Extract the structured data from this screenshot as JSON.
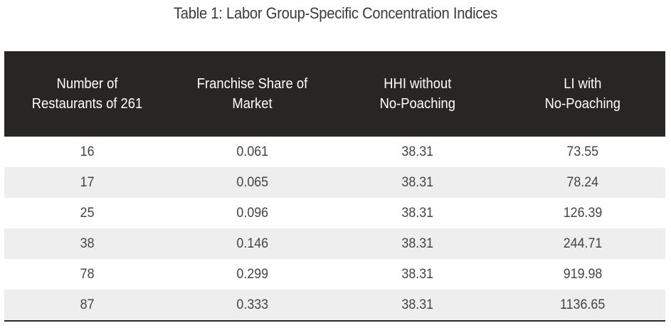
{
  "title": "Table 1: Labor Group-Specific Concentration Indices",
  "table": {
    "headers": [
      "Number of\nRestaurants of 261",
      "Franchise Share of\nMarket",
      "HHI without\nNo-Poaching",
      "LI with\nNo-Poaching"
    ],
    "rows": [
      [
        "16",
        "0.061",
        "38.31",
        "73.55"
      ],
      [
        "17",
        "0.065",
        "38.31",
        "78.24"
      ],
      [
        "25",
        "0.096",
        "38.31",
        "126.39"
      ],
      [
        "38",
        "0.146",
        "38.31",
        "244.71"
      ],
      [
        "78",
        "0.299",
        "38.31",
        "919.98"
      ],
      [
        "87",
        "0.333",
        "38.31",
        "1136.65"
      ]
    ]
  }
}
